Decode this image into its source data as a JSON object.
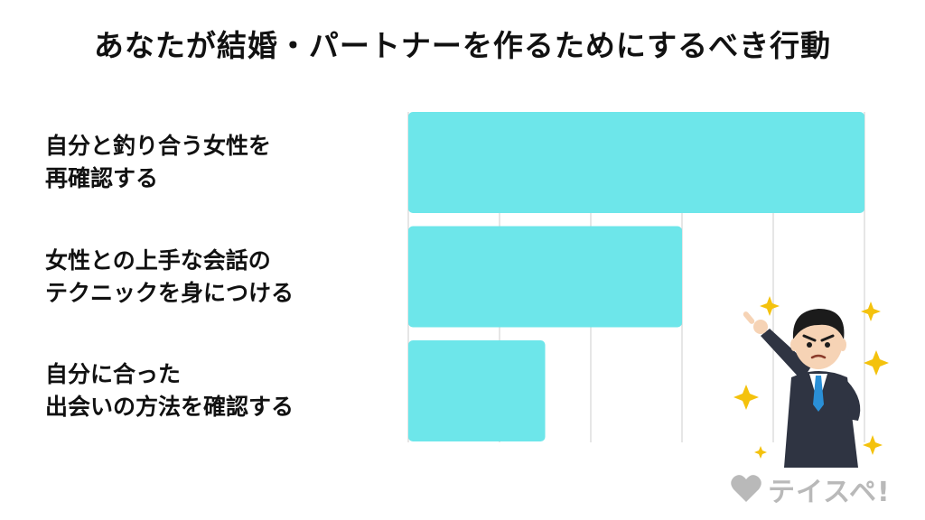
{
  "title": "あなたが結婚・パートナーを作るためにするべき行動",
  "chart_data": {
    "type": "bar",
    "orientation": "horizontal",
    "categories": [
      [
        "自分と釣り合う女性を",
        "再確認する"
      ],
      [
        "女性との上手な会話の",
        "テクニックを身につける"
      ],
      [
        "自分に合った",
        "出会いの方法を確認する"
      ]
    ],
    "values": [
      5,
      3,
      1.5
    ],
    "xlim": [
      0,
      5
    ],
    "grid": true,
    "bar_color": "#6de6ea",
    "gridline_color": "#cccccc"
  },
  "illustration": {
    "icon": "pointing-businessman-icon",
    "sparkle_color": "#f4c20d"
  },
  "watermark": {
    "icon": "heart-icon",
    "text": "テイスペ!",
    "color": "#b9b9b9"
  }
}
